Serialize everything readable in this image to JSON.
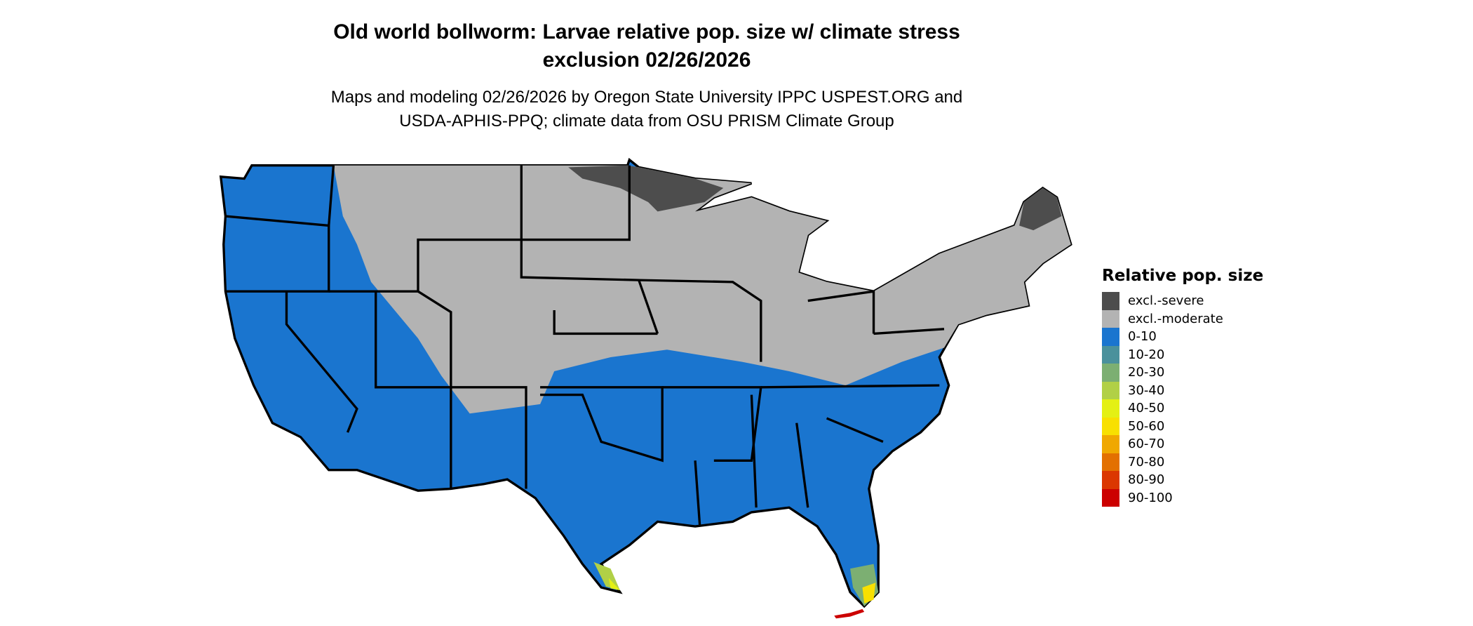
{
  "title_line1": "Old world bollworm: Larvae relative pop. size w/ climate stress",
  "title_line2": "exclusion 02/26/2026",
  "subtitle_line1": "Maps and modeling 02/26/2026 by Oregon State University IPPC USPEST.ORG and",
  "subtitle_line2": "USDA-APHIS-PPQ; climate data from OSU PRISM Climate Group",
  "chart_data": {
    "type": "choropleth-map",
    "region": "Contiguous United States",
    "legend_title": "Relative pop. size",
    "legend_placement": "right",
    "legend": [
      {
        "label": "excl.-severe",
        "color": "#4d4d4d"
      },
      {
        "label": "excl.-moderate",
        "color": "#b3b3b3"
      },
      {
        "label": "0-10",
        "color": "#1a75cf"
      },
      {
        "label": "10-20",
        "color": "#4a919c"
      },
      {
        "label": "20-30",
        "color": "#7caf72"
      },
      {
        "label": "30-40",
        "color": "#b1d046"
      },
      {
        "label": "40-50",
        "color": "#e4f014"
      },
      {
        "label": "50-60",
        "color": "#f8e000"
      },
      {
        "label": "60-70",
        "color": "#f0a800"
      },
      {
        "label": "70-80",
        "color": "#e37000"
      },
      {
        "label": "80-90",
        "color": "#db3700"
      },
      {
        "label": "90-100",
        "color": "#cc0000"
      }
    ],
    "summary": {
      "excl.-severe": "northern Minnesota, northern Maine",
      "excl.-moderate": "northern tier and Midwest/Northeast states, Rocky Mountain highlands",
      "0-10": "Pacific coast, Southwest, South, Southeast",
      "higher": "southern tip of Texas and southern Florida / Keys"
    }
  }
}
